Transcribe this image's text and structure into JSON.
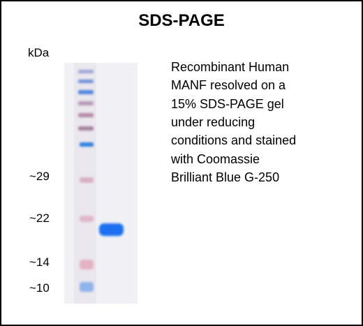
{
  "title": "SDS-PAGE",
  "unit": "kDa",
  "markers": [
    "~29",
    "~22",
    "~14",
    "~10"
  ],
  "description": [
    "Recombinant Human",
    "MANF resolved on a",
    "15% SDS-PAGE gel",
    "under reducing",
    "conditions and stained",
    "with Coomassie",
    "Brilliant Blue G-250"
  ]
}
